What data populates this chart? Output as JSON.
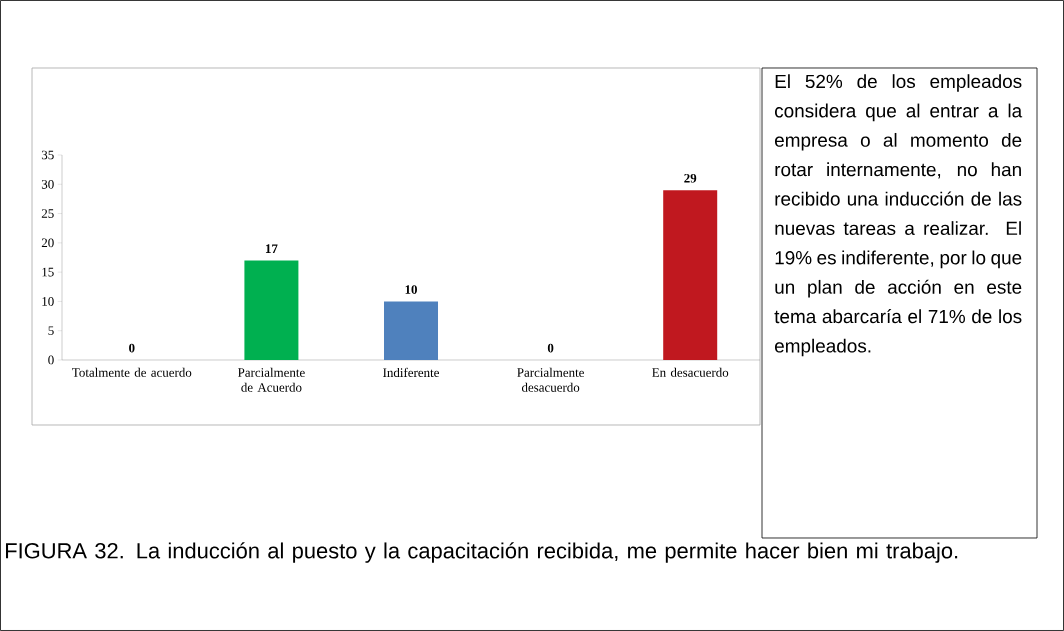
{
  "chart_data": {
    "type": "bar",
    "categories": [
      "Totalmente de acuerdo",
      "Parcialmente de Acuerdo",
      "Indiferente",
      "Parcialmente desacuerdo",
      "En desacuerdo"
    ],
    "values": [
      0,
      17,
      10,
      0,
      29
    ],
    "colors": [
      "#00b050",
      "#00b050",
      "#4f81bd",
      "#4f81bd",
      "#c0181f"
    ],
    "ylim": [
      0,
      35
    ],
    "yticks": [
      0,
      5,
      10,
      15,
      20,
      25,
      30,
      35
    ],
    "data_labels": true,
    "annotations": [
      "El 52% de los empleados considera que al entrar a la empresa o al momento de rotar internamente, no han recibido una inducción de las nuevas tareas a realizar. El 19% es indiferente, por lo que un plan de acción en este tema abarcaría el 71% de los empleados.",
      "FIGURA 32. La inducción al puesto y la capacitación recibida, me permite hacer bien mi trabajo."
    ]
  }
}
